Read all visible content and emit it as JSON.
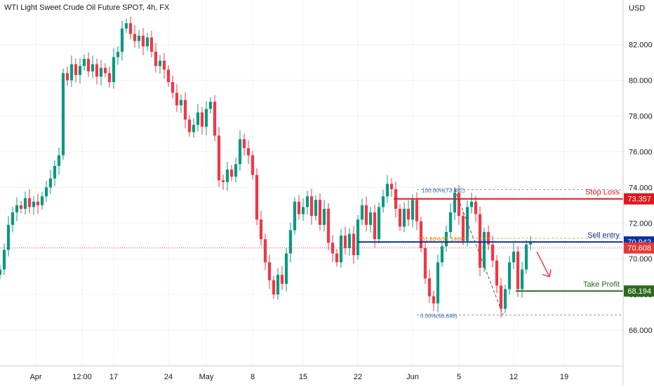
{
  "header": {
    "title": "WTI Light Sweet Crude Oil Future SPOT, 4h, FX"
  },
  "axis": {
    "currency": "USD"
  },
  "chart_data": {
    "type": "candlestick",
    "title": "WTI Light Sweet Crude Oil Future SPOT, 4h, FX",
    "ylim": [
      64.0,
      84.5
    ],
    "y_ticks": [
      "82.000",
      "80.000",
      "78.000",
      "76.000",
      "74.000",
      "72.000",
      "70.000",
      "68.000",
      "66.000"
    ],
    "y_tick_values": [
      82,
      80,
      78,
      76,
      74,
      72,
      70,
      68,
      66
    ],
    "x_ticks": [
      "Apr",
      "12:00",
      "17",
      "24",
      "May",
      "8",
      "15",
      "22",
      "Jun",
      "5",
      "12",
      "19"
    ],
    "x_tick_positions": [
      0.5,
      11.5,
      19,
      32,
      41,
      52,
      64,
      77,
      90,
      101,
      114,
      126
    ],
    "x_range": [
      -8,
      140
    ],
    "grid": true,
    "price_labels": [
      {
        "label": "Stop Loss",
        "value": "73.357",
        "price": 73.357,
        "color": "#e5151b"
      },
      {
        "label": "Sell entry",
        "value": "70.942",
        "price": 70.942,
        "color": "#0d2fa0"
      },
      {
        "label": "",
        "value": "70.608",
        "price": 70.608,
        "color": "#e53935"
      },
      {
        "label": "Take Profit",
        "value": "68.194",
        "price": 68.194,
        "color": "#2b6b1c"
      }
    ],
    "fibonacci": [
      {
        "label": "100.00%(73.882)",
        "price": 73.882
      },
      {
        "label": "61.80%(71.146)",
        "price": 71.146
      },
      {
        "label": "0.00%(66.848)",
        "price": 66.848
      }
    ],
    "levels": {
      "stop_loss": 73.357,
      "sell_entry": 70.942,
      "current": 70.608,
      "take_profit": 68.194,
      "fib_high": 73.882,
      "fib_mid": 71.146,
      "fib_low": 66.848
    },
    "series": [
      {
        "x": -8,
        "close": 69.4
      },
      {
        "x": -7,
        "close": 70.5
      },
      {
        "x": -6,
        "close": 71.9
      },
      {
        "x": -5,
        "close": 72.6
      },
      {
        "x": -4,
        "close": 73.0
      },
      {
        "x": -3,
        "close": 72.8
      },
      {
        "x": -2,
        "close": 73.4
      },
      {
        "x": -1,
        "close": 72.9
      },
      {
        "x": 0,
        "close": 73.2
      },
      {
        "x": 1,
        "close": 73.0
      },
      {
        "x": 2,
        "close": 73.5
      },
      {
        "x": 3,
        "close": 74.0
      },
      {
        "x": 4,
        "close": 74.5
      },
      {
        "x": 5,
        "close": 75.2
      },
      {
        "x": 6,
        "close": 75.8
      },
      {
        "x": 7,
        "close": 80.4
      },
      {
        "x": 8,
        "close": 80.0
      },
      {
        "x": 9,
        "close": 80.9
      },
      {
        "x": 10,
        "close": 80.3
      },
      {
        "x": 11,
        "close": 80.8
      },
      {
        "x": 12,
        "close": 81.2
      },
      {
        "x": 13,
        "close": 80.5
      },
      {
        "x": 14,
        "close": 80.9
      },
      {
        "x": 15,
        "close": 80.2
      },
      {
        "x": 16,
        "close": 80.7
      },
      {
        "x": 17,
        "close": 80.4
      },
      {
        "x": 18,
        "close": 79.9
      },
      {
        "x": 19,
        "close": 81.3
      },
      {
        "x": 20,
        "close": 81.6
      },
      {
        "x": 21,
        "close": 82.9
      },
      {
        "x": 22,
        "close": 83.2
      },
      {
        "x": 23,
        "close": 82.6
      },
      {
        "x": 24,
        "close": 82.2
      },
      {
        "x": 25,
        "close": 82.5
      },
      {
        "x": 26,
        "close": 81.9
      },
      {
        "x": 27,
        "close": 82.4
      },
      {
        "x": 28,
        "close": 81.6
      },
      {
        "x": 29,
        "close": 80.8
      },
      {
        "x": 30,
        "close": 81.1
      },
      {
        "x": 31,
        "close": 80.6
      },
      {
        "x": 32,
        "close": 79.9
      },
      {
        "x": 33,
        "close": 79.3
      },
      {
        "x": 34,
        "close": 78.6
      },
      {
        "x": 35,
        "close": 78.9
      },
      {
        "x": 36,
        "close": 77.8
      },
      {
        "x": 37,
        "close": 77.1
      },
      {
        "x": 38,
        "close": 77.5
      },
      {
        "x": 39,
        "close": 78.2
      },
      {
        "x": 40,
        "close": 77.4
      },
      {
        "x": 41,
        "close": 78.4
      },
      {
        "x": 42,
        "close": 78.8
      },
      {
        "x": 43,
        "close": 76.9
      },
      {
        "x": 44,
        "close": 74.4
      },
      {
        "x": 45,
        "close": 74.3
      },
      {
        "x": 46,
        "close": 75.0
      },
      {
        "x": 47,
        "close": 74.6
      },
      {
        "x": 48,
        "close": 75.3
      },
      {
        "x": 49,
        "close": 76.7
      },
      {
        "x": 50,
        "close": 76.2
      },
      {
        "x": 51,
        "close": 75.8
      },
      {
        "x": 52,
        "close": 74.7
      },
      {
        "x": 53,
        "close": 72.2
      },
      {
        "x": 54,
        "close": 71.1
      },
      {
        "x": 55,
        "close": 69.8
      },
      {
        "x": 56,
        "close": 68.8
      },
      {
        "x": 57,
        "close": 68.0
      },
      {
        "x": 58,
        "close": 69.1
      },
      {
        "x": 59,
        "close": 68.6
      },
      {
        "x": 60,
        "close": 70.3
      },
      {
        "x": 61,
        "close": 71.6
      },
      {
        "x": 62,
        "close": 73.2
      },
      {
        "x": 63,
        "close": 72.5
      },
      {
        "x": 64,
        "close": 72.9
      },
      {
        "x": 65,
        "close": 73.5
      },
      {
        "x": 66,
        "close": 72.4
      },
      {
        "x": 67,
        "close": 73.3
      },
      {
        "x": 68,
        "close": 71.9
      },
      {
        "x": 69,
        "close": 72.8
      },
      {
        "x": 70,
        "close": 70.9
      },
      {
        "x": 71,
        "close": 70.3
      },
      {
        "x": 72,
        "close": 69.8
      },
      {
        "x": 73,
        "close": 71.3
      },
      {
        "x": 74,
        "close": 70.6
      },
      {
        "x": 75,
        "close": 71.4
      },
      {
        "x": 76,
        "close": 70.2
      },
      {
        "x": 77,
        "close": 72.2
      },
      {
        "x": 78,
        "close": 73.0
      },
      {
        "x": 79,
        "close": 71.9
      },
      {
        "x": 80,
        "close": 72.6
      },
      {
        "x": 81,
        "close": 71.1
      },
      {
        "x": 82,
        "close": 72.9
      },
      {
        "x": 83,
        "close": 73.5
      },
      {
        "x": 84,
        "close": 74.2
      },
      {
        "x": 85,
        "close": 73.9
      },
      {
        "x": 86,
        "close": 72.8
      },
      {
        "x": 87,
        "close": 71.8
      },
      {
        "x": 88,
        "close": 72.8
      },
      {
        "x": 89,
        "close": 72.2
      },
      {
        "x": 90,
        "close": 73.3
      },
      {
        "x": 91,
        "close": 72.1
      },
      {
        "x": 92,
        "close": 70.6
      },
      {
        "x": 93,
        "close": 68.9
      },
      {
        "x": 94,
        "close": 67.9
      },
      {
        "x": 95,
        "close": 67.5
      },
      {
        "x": 96,
        "close": 69.8
      },
      {
        "x": 97,
        "close": 70.7
      },
      {
        "x": 98,
        "close": 71.5
      },
      {
        "x": 99,
        "close": 72.6
      },
      {
        "x": 100,
        "close": 73.7
      },
      {
        "x": 101,
        "close": 72.4
      },
      {
        "x": 102,
        "close": 71.0
      },
      {
        "x": 103,
        "close": 72.9
      },
      {
        "x": 104,
        "close": 73.2
      },
      {
        "x": 105,
        "close": 72.5
      },
      {
        "x": 106,
        "close": 69.5
      },
      {
        "x": 107,
        "close": 71.5
      },
      {
        "x": 108,
        "close": 70.8
      },
      {
        "x": 109,
        "close": 69.9
      },
      {
        "x": 110,
        "close": 68.5
      },
      {
        "x": 111,
        "close": 67.2
      },
      {
        "x": 112,
        "close": 68.3
      },
      {
        "x": 113,
        "close": 69.8
      },
      {
        "x": 114,
        "close": 70.4
      },
      {
        "x": 115,
        "close": 68.3
      },
      {
        "x": 116,
        "close": 69.4
      },
      {
        "x": 117,
        "close": 70.8
      },
      {
        "x": 118,
        "close": 70.9
      }
    ]
  }
}
